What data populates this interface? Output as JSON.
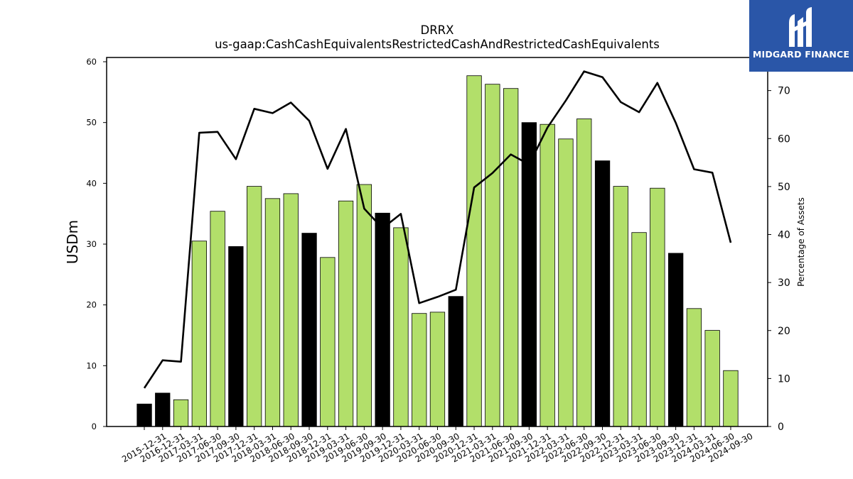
{
  "chart_data": {
    "type": "bar",
    "title": "DRRX",
    "subtitle": "us-gaap:CashCashEquivalentsRestrictedCashAndRestrictedCashEquivalents",
    "ylabel": "USDm",
    "y2label": "Percentage of Assets",
    "ylim": [
      0,
      60
    ],
    "y2lim": [
      0,
      80
    ],
    "yticks": [
      0,
      10,
      20,
      30,
      40,
      50,
      60
    ],
    "y2ticks": [
      0,
      10,
      20,
      30,
      40,
      50,
      60,
      70
    ],
    "categories": [
      "2015-12-31",
      "2016-12-31",
      "2017-03-31",
      "2017-06-30",
      "2017-09-30",
      "2017-12-31",
      "2018-03-31",
      "2018-06-30",
      "2018-09-30",
      "2018-12-31",
      "2019-03-31",
      "2019-06-30",
      "2019-09-30",
      "2019-12-31",
      "2020-03-31",
      "2020-06-30",
      "2020-09-30",
      "2020-12-31",
      "2021-03-31",
      "2021-06-30",
      "2021-09-30",
      "2021-12-31",
      "2022-03-31",
      "2022-06-30",
      "2022-09-30",
      "2022-12-31",
      "2023-03-31",
      "2023-06-30",
      "2023-09-30",
      "2023-12-31",
      "2024-03-31",
      "2024-06-30",
      "2024-09-30"
    ],
    "series": [
      {
        "type": "bar",
        "axis": "left",
        "values": [
          3.7,
          5.5,
          4.4,
          30.5,
          35.4,
          29.6,
          39.5,
          37.5,
          38.3,
          31.8,
          27.8,
          37.1,
          39.8,
          35.1,
          32.7,
          18.6,
          18.8,
          21.4,
          57.7,
          56.3,
          55.6,
          50.0,
          49.7,
          47.3,
          50.6,
          43.7,
          39.5,
          31.9,
          39.2,
          28.5,
          19.4,
          15.8,
          9.2
        ],
        "colors": [
          "#000000",
          "#000000",
          "#b2df6a",
          "#b2df6a",
          "#b2df6a",
          "#000000",
          "#b2df6a",
          "#b2df6a",
          "#b2df6a",
          "#000000",
          "#b2df6a",
          "#b2df6a",
          "#b2df6a",
          "#000000",
          "#b2df6a",
          "#b2df6a",
          "#b2df6a",
          "#000000",
          "#b2df6a",
          "#b2df6a",
          "#b2df6a",
          "#000000",
          "#b2df6a",
          "#b2df6a",
          "#b2df6a",
          "#000000",
          "#b2df6a",
          "#b2df6a",
          "#b2df6a",
          "#000000",
          "#b2df6a",
          "#b2df6a",
          "#b2df6a"
        ]
      },
      {
        "type": "line",
        "axis": "right",
        "color": "#000000",
        "values": [
          8.0,
          13.8,
          13.5,
          61.2,
          61.4,
          55.7,
          66.2,
          65.3,
          67.5,
          63.7,
          53.7,
          62.0,
          45.4,
          41.3,
          44.3,
          25.7,
          27.0,
          28.5,
          49.8,
          52.8,
          56.7,
          54.6,
          62.3,
          67.9,
          74.0,
          72.8,
          67.6,
          65.5,
          71.6,
          63.3,
          53.6,
          52.9,
          38.3
        ]
      }
    ]
  },
  "logo": {
    "text": "MIDGARD FINANCE",
    "bg_color": "#2a56a8"
  }
}
